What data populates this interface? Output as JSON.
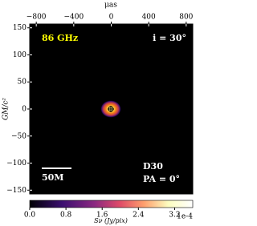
{
  "chart_data": {
    "type": "image",
    "annotations": [
      "86 GHz",
      "i = 30°",
      "D30",
      "PA = 0°",
      "50M"
    ],
    "xlabel": "μas",
    "ylabel": "GM/c²",
    "xlim": [
      -870,
      870
    ],
    "xticks": [
      {
        "value": -800,
        "label": "−800"
      },
      {
        "value": -400,
        "label": "−400"
      },
      0,
      400,
      800
    ],
    "ylim": [
      -157,
      157
    ],
    "yticks": [
      150,
      100,
      50,
      0,
      {
        "value": -50,
        "label": "−50"
      },
      {
        "value": -100,
        "label": "−100"
      },
      {
        "value": -150,
        "label": "−150"
      }
    ],
    "colorbar": {
      "label": "Sν (Jy/pix)",
      "offset_label": "1e-4",
      "lim": [
        0,
        3.6
      ],
      "ticks": [
        {
          "value": 0,
          "label": "0.0"
        },
        0.8,
        1.6,
        2.4,
        3.2
      ]
    }
  }
}
